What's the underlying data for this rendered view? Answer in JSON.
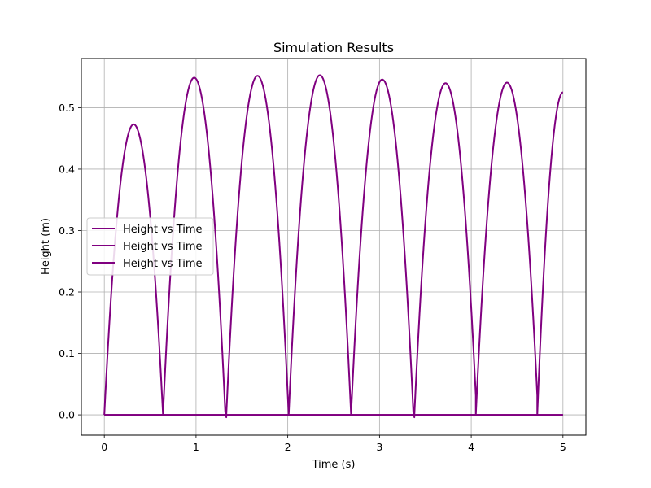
{
  "chart_data": {
    "type": "line",
    "title": "Simulation Results",
    "xlabel": "Time (s)",
    "ylabel": "Height (m)",
    "xlim": [
      -0.25,
      5.25
    ],
    "ylim": [
      -0.033,
      0.58
    ],
    "xticks": [
      0,
      1,
      2,
      3,
      4,
      5
    ],
    "yticks": [
      0.0,
      0.1,
      0.2,
      0.3,
      0.4,
      0.5
    ],
    "xtick_labels": [
      "0",
      "1",
      "2",
      "3",
      "4",
      "5"
    ],
    "ytick_labels": [
      "0.0",
      "0.1",
      "0.2",
      "0.3",
      "0.4",
      "0.5"
    ],
    "grid": true,
    "legend_position": "center-left",
    "color": "#800080",
    "bounces": [
      {
        "start": 0.0,
        "peak_t": 0.32,
        "peak": 0.473,
        "end": 0.64
      },
      {
        "start": 0.64,
        "peak_t": 0.98,
        "peak": 0.549,
        "end": 1.33
      },
      {
        "start": 1.33,
        "peak_t": 1.67,
        "peak": 0.552,
        "end": 2.01
      },
      {
        "start": 2.01,
        "peak_t": 2.35,
        "peak": 0.553,
        "end": 2.69
      },
      {
        "start": 2.69,
        "peak_t": 3.03,
        "peak": 0.546,
        "end": 3.38
      },
      {
        "start": 3.38,
        "peak_t": 3.72,
        "peak": 0.54,
        "end": 4.05
      },
      {
        "start": 4.05,
        "peak_t": 4.39,
        "peak": 0.541,
        "end": 4.72
      },
      {
        "start": 4.72,
        "peak_t": 5.0,
        "peak": 0.525,
        "end": 5.0,
        "partial": true
      }
    ],
    "series": [
      {
        "name": "Height vs Time",
        "kind": "bounce"
      },
      {
        "name": "Height vs Time",
        "kind": "flat",
        "x": [
          0,
          5
        ],
        "values": [
          0,
          0
        ]
      },
      {
        "name": "Height vs Time",
        "kind": "flat",
        "x": [
          0,
          5
        ],
        "values": [
          0,
          0
        ]
      }
    ]
  }
}
